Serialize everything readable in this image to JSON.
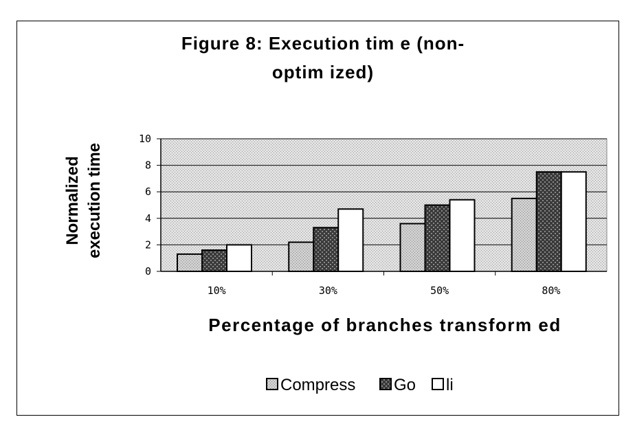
{
  "chart_data": {
    "type": "bar",
    "title": "Figure 8: Execution time (non-optimized)",
    "title_lines": [
      "Figure 8: Execution tim e (non-",
      "optim ized)"
    ],
    "xlabel": "Percentage of branches transform ed",
    "ylabel_lines": [
      "Normalized",
      "execution time"
    ],
    "categories": [
      "10%",
      "30%",
      "50%",
      "80%"
    ],
    "ylim": [
      0,
      10
    ],
    "yticks": [
      "0",
      "2",
      "4",
      "6",
      "8",
      "10"
    ],
    "series": [
      {
        "name": "Compress",
        "values": [
          1.3,
          2.2,
          3.6,
          5.5
        ],
        "color": "#c8c8c8"
      },
      {
        "name": "Go",
        "values": [
          1.6,
          3.3,
          5.0,
          7.5
        ],
        "color": "#555555"
      },
      {
        "name": "li",
        "values": [
          2.0,
          4.7,
          5.4,
          7.5
        ],
        "color": "#ffffff"
      }
    ],
    "grid": true,
    "legend_position": "bottom"
  }
}
